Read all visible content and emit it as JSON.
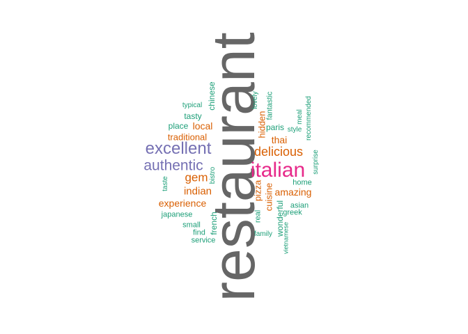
{
  "colors": {
    "gray": "#666666",
    "pink": "#e7298a",
    "purple": "#7570b3",
    "orange": "#d95f02",
    "teal": "#1b9e77"
  },
  "words": [
    {
      "text": "restaurant",
      "color": "gray",
      "vertical": true
    },
    {
      "text": "italian",
      "color": "pink",
      "vertical": false
    },
    {
      "text": "excellent",
      "color": "purple",
      "vertical": false
    },
    {
      "text": "authentic",
      "color": "purple",
      "vertical": false
    },
    {
      "text": "delicious",
      "color": "orange",
      "vertical": false
    },
    {
      "text": "gem",
      "color": "orange",
      "vertical": false
    },
    {
      "text": "indian",
      "color": "orange",
      "vertical": false
    },
    {
      "text": "experience",
      "color": "orange",
      "vertical": false
    },
    {
      "text": "amazing",
      "color": "orange",
      "vertical": false
    },
    {
      "text": "local",
      "color": "orange",
      "vertical": false
    },
    {
      "text": "traditional",
      "color": "orange",
      "vertical": false
    },
    {
      "text": "thai",
      "color": "orange",
      "vertical": false
    },
    {
      "text": "hidden",
      "color": "orange",
      "vertical": true
    },
    {
      "text": "pizza",
      "color": "orange",
      "vertical": true
    },
    {
      "text": "cuisine",
      "color": "orange",
      "vertical": true
    },
    {
      "text": "paris",
      "color": "teal",
      "vertical": false
    },
    {
      "text": "chinese",
      "color": "teal",
      "vertical": true
    },
    {
      "text": "typical",
      "color": "teal",
      "vertical": false
    },
    {
      "text": "tasty",
      "color": "teal",
      "vertical": false
    },
    {
      "text": "place",
      "color": "teal",
      "vertical": false
    },
    {
      "text": "fantastic",
      "color": "teal",
      "vertical": true
    },
    {
      "text": "lovely",
      "color": "teal",
      "vertical": true
    },
    {
      "text": "meal",
      "color": "teal",
      "vertical": true
    },
    {
      "text": "style",
      "color": "teal",
      "vertical": false
    },
    {
      "text": "recommended",
      "color": "teal",
      "vertical": true
    },
    {
      "text": "surprise",
      "color": "teal",
      "vertical": true
    },
    {
      "text": "bistro",
      "color": "teal",
      "vertical": true
    },
    {
      "text": "taste",
      "color": "teal",
      "vertical": true
    },
    {
      "text": "home",
      "color": "teal",
      "vertical": false
    },
    {
      "text": "japanese",
      "color": "teal",
      "vertical": false
    },
    {
      "text": "real",
      "color": "teal",
      "vertical": true
    },
    {
      "text": "wonderful",
      "color": "teal",
      "vertical": true
    },
    {
      "text": "asian",
      "color": "teal",
      "vertical": false
    },
    {
      "text": "greek",
      "color": "teal",
      "vertical": false
    },
    {
      "text": "french",
      "color": "teal",
      "vertical": true
    },
    {
      "text": "small",
      "color": "teal",
      "vertical": false
    },
    {
      "text": "find",
      "color": "teal",
      "vertical": false
    },
    {
      "text": "service",
      "color": "teal",
      "vertical": false
    },
    {
      "text": "family",
      "color": "teal",
      "vertical": false
    },
    {
      "text": "vietnamese",
      "color": "teal",
      "vertical": true
    }
  ]
}
